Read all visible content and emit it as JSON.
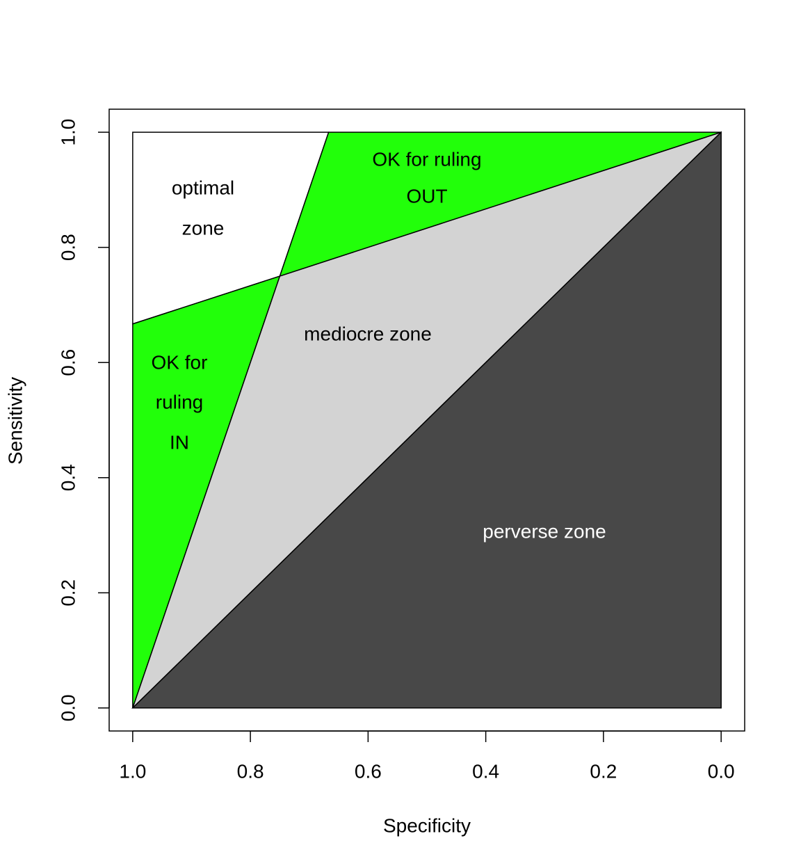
{
  "chart_data": {
    "type": "polygon",
    "xlabel": "Specificity",
    "ylabel": "Sensitivity",
    "xlim": [
      1.04,
      -0.04
    ],
    "ylim": [
      -0.04,
      1.04
    ],
    "xticks": [
      {
        "value": 1,
        "label": "1.0"
      },
      0.8,
      0.6,
      0.4,
      0.2,
      {
        "value": 0,
        "label": "0.0"
      }
    ],
    "yticks": [
      {
        "value": 0,
        "label": "0.0"
      },
      0.2,
      0.4,
      0.6,
      0.8,
      {
        "value": 1,
        "label": "1.0"
      }
    ],
    "regions": [
      {
        "label": [
          "optimal",
          "zone"
        ],
        "color": "#ffffff",
        "label_color": "#000000",
        "x": [
          1,
          0.667,
          0.75,
          1
        ],
        "y": [
          1,
          1,
          0.75,
          0.667
        ]
      },
      {
        "label": [
          "OK for ruling",
          "OUT"
        ],
        "color": "#22ff0a",
        "label_color": "#000000",
        "x": [
          0.667,
          0,
          0.75
        ],
        "y": [
          1,
          1,
          0.75
        ]
      },
      {
        "label": [
          "OK for",
          "ruling",
          "IN"
        ],
        "color": "#22ff0a",
        "label_color": "#000000",
        "x": [
          1,
          0.75,
          1
        ],
        "y": [
          0.667,
          0.75,
          0
        ]
      },
      {
        "label": [
          "mediocre zone"
        ],
        "color": "#d3d3d3",
        "label_color": "#000000",
        "x": [
          1,
          0.75,
          0
        ],
        "y": [
          0,
          0.75,
          1
        ]
      },
      {
        "label": [
          "perverse zone"
        ],
        "color": "#484848",
        "label_color": "#ffffff",
        "x": [
          1,
          0,
          0
        ],
        "y": [
          0,
          1,
          0
        ]
      }
    ]
  }
}
